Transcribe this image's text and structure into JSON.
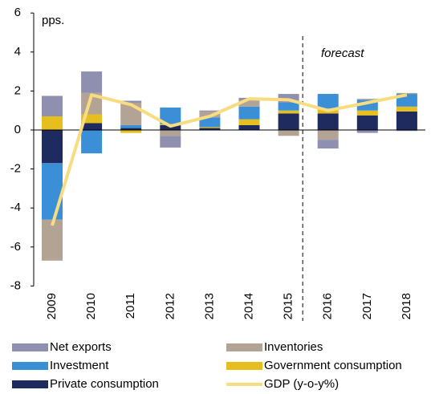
{
  "chart_data": {
    "type": "bar",
    "stacked": true,
    "y_label": "pps.",
    "annotation": "forecast",
    "forecast_from": "2016",
    "categories": [
      "2009",
      "2010",
      "2011",
      "2012",
      "2013",
      "2014",
      "2015",
      "2016",
      "2017",
      "2018"
    ],
    "series": [
      {
        "name": "Net exports",
        "color": "#8f8fb0",
        "values": [
          1.05,
          1.1,
          0.1,
          -0.6,
          0.05,
          0.15,
          0.45,
          -0.45,
          -0.15,
          -0.05
        ]
      },
      {
        "name": "Inventories",
        "color": "#b3a394",
        "values": [
          -2.1,
          1.1,
          1.15,
          -0.3,
          0.3,
          0.3,
          -0.3,
          -0.5,
          0.05,
          0.05
        ]
      },
      {
        "name": "Investment",
        "color": "#3a8fd6",
        "values": [
          -2.9,
          -1.2,
          0.15,
          0.85,
          0.5,
          0.65,
          0.4,
          0.75,
          0.55,
          0.65
        ]
      },
      {
        "name": "Government consumption",
        "color": "#e6be1e",
        "values": [
          0.7,
          0.45,
          -0.15,
          0.05,
          0.05,
          0.3,
          0.15,
          0.25,
          0.25,
          0.25
        ]
      },
      {
        "name": "Private consumption",
        "color": "#1f2a5e",
        "values": [
          -1.7,
          0.35,
          0.1,
          0.25,
          0.1,
          0.25,
          0.85,
          0.85,
          0.75,
          0.95
        ]
      },
      {
        "name": "GDP (y-o-y%)",
        "color": "#f8dc80",
        "kind": "line",
        "values": [
          -4.9,
          1.8,
          1.3,
          0.2,
          0.7,
          1.6,
          1.55,
          1.0,
          1.4,
          1.8
        ]
      }
    ],
    "ylim": [
      -8,
      6
    ],
    "yticks": [
      -8,
      -6,
      -4,
      -2,
      0,
      2,
      4,
      6
    ]
  }
}
